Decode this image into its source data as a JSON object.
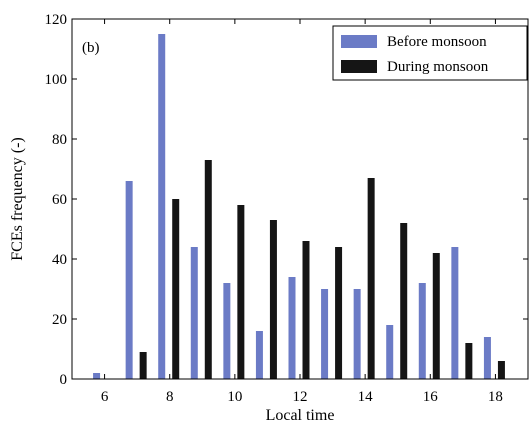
{
  "chart_data": {
    "type": "bar",
    "panel_label": "(b)",
    "xlabel": "Local time",
    "ylabel": "FCEs frequency (-)",
    "x": [
      6,
      7,
      8,
      9,
      10,
      11,
      12,
      13,
      14,
      15,
      16,
      17,
      18
    ],
    "xlim": [
      5,
      19
    ],
    "ylim": [
      0,
      120
    ],
    "xticks": [
      6,
      8,
      10,
      12,
      14,
      16,
      18
    ],
    "yticks": [
      0,
      20,
      40,
      60,
      80,
      100,
      120
    ],
    "legend_position": "top-right",
    "series": [
      {
        "name": "Before monsoon",
        "color": "#6b7bc6",
        "values": [
          2,
          66,
          115,
          44,
          32,
          16,
          34,
          30,
          30,
          18,
          32,
          44,
          14
        ]
      },
      {
        "name": "During monsoon",
        "color": "#151515",
        "values": [
          0,
          9,
          60,
          73,
          58,
          53,
          46,
          44,
          67,
          52,
          42,
          12,
          6
        ]
      }
    ]
  }
}
